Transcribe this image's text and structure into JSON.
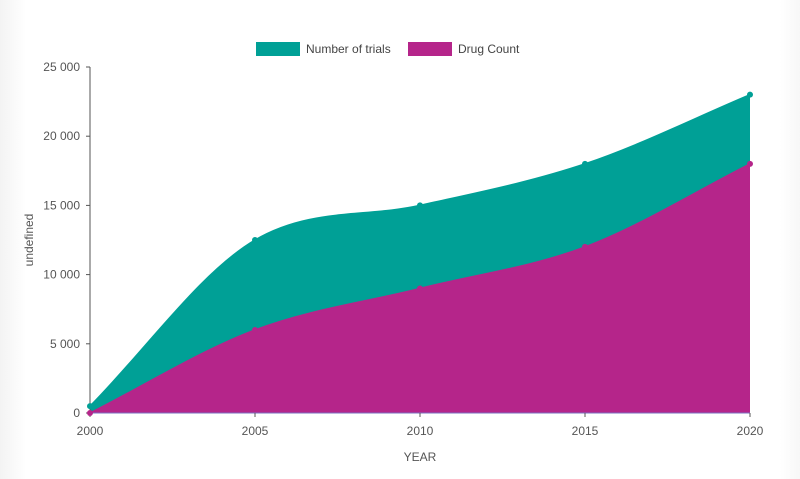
{
  "chart_data": {
    "type": "area",
    "x": [
      2000,
      2005,
      2010,
      2015,
      2020
    ],
    "series": [
      {
        "name": "Number of trials",
        "color": "#00a096",
        "values": [
          500,
          12500,
          15000,
          18000,
          23000
        ]
      },
      {
        "name": "Drug Count",
        "color": "#b5258a",
        "values": [
          0,
          6000,
          9000,
          12000,
          18000
        ]
      }
    ],
    "xlabel": "YEAR",
    "ylabel": "undefined",
    "xlim": [
      2000,
      2020
    ],
    "ylim": [
      0,
      25000
    ],
    "yticks": [
      0,
      5000,
      10000,
      15000,
      20000,
      25000
    ],
    "ytick_labels": [
      "0",
      "5 000",
      "10 000",
      "15 000",
      "20 000",
      "25 000"
    ],
    "xticks": [
      2000,
      2005,
      2010,
      2015,
      2020
    ],
    "xtick_labels": [
      "2000",
      "2005",
      "2010",
      "2015",
      "2020"
    ],
    "legend_position": "top-center",
    "grid": false,
    "stacked": false,
    "smooth": true
  }
}
